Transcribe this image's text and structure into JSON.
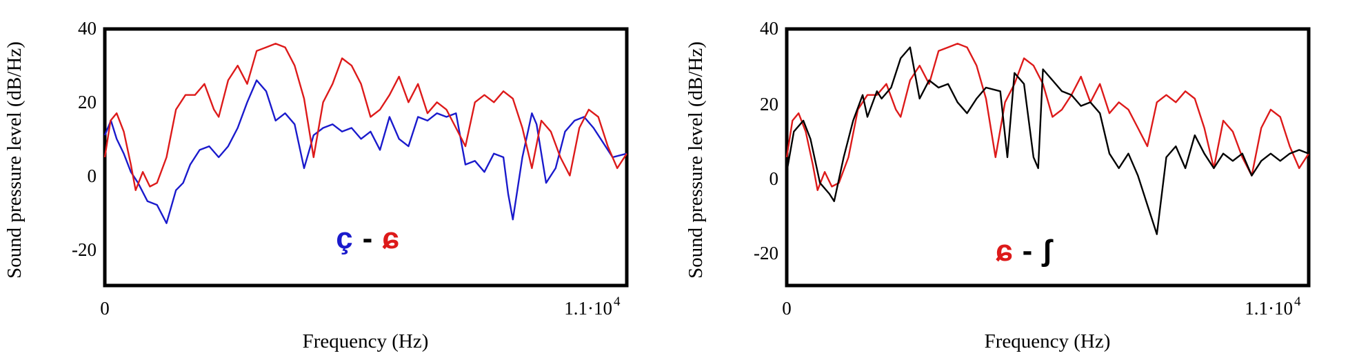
{
  "chart_data": [
    {
      "type": "line",
      "xlabel": "Frequency (Hz)",
      "ylabel": "Sound pressure level (dB/Hz)",
      "xlim": [
        0,
        11000
      ],
      "ylim": [
        -30,
        40
      ],
      "x_tick_labels": [
        "0",
        "1.1·10"
      ],
      "x_tick_exponent": "4",
      "yticks": [
        40,
        20,
        0,
        -20
      ],
      "y_tick_labels": [
        "40",
        "20",
        "0",
        "-20"
      ],
      "legend": {
        "parts": [
          "ç",
          "-",
          "ɕ"
        ],
        "colors": [
          "#1a1acc",
          "#000000",
          "#dd1a1a"
        ],
        "position": "bottom-center"
      },
      "series": [
        {
          "color": "#1a1acc",
          "x": [
            0,
            130,
            250,
            400,
            550,
            700,
            900,
            1100,
            1300,
            1500,
            1650,
            1800,
            2000,
            2200,
            2400,
            2600,
            2800,
            3000,
            3200,
            3400,
            3600,
            3800,
            4000,
            4200,
            4400,
            4600,
            4800,
            5000,
            5200,
            5400,
            5600,
            5800,
            6000,
            6200,
            6400,
            6600,
            6800,
            7000,
            7200,
            7400,
            7600,
            7800,
            8000,
            8200,
            8400,
            8500,
            8600,
            8800,
            9000,
            9100,
            9300,
            9500,
            9700,
            9900,
            10100,
            10300,
            10500,
            10700,
            11000
          ],
          "y": [
            11,
            15,
            10,
            6,
            1,
            -2,
            -7,
            -8,
            -13,
            -4,
            -2,
            3,
            7,
            8,
            5,
            8,
            13,
            20,
            26,
            23,
            15,
            17,
            14,
            2,
            11,
            13,
            14,
            12,
            13,
            10,
            12,
            7,
            16,
            10,
            8,
            16,
            15,
            17,
            16,
            17,
            3,
            4,
            1,
            6,
            5,
            -5,
            -12,
            5,
            17,
            14,
            -2,
            2,
            12,
            15,
            16,
            13,
            9,
            5,
            6
          ]
        },
        {
          "color": "#dd1a1a",
          "x": [
            0,
            120,
            250,
            400,
            550,
            650,
            800,
            950,
            1100,
            1300,
            1500,
            1700,
            1900,
            2100,
            2300,
            2400,
            2600,
            2800,
            3000,
            3200,
            3400,
            3600,
            3800,
            4000,
            4200,
            4400,
            4600,
            4800,
            5000,
            5200,
            5400,
            5600,
            5800,
            6000,
            6200,
            6400,
            6600,
            6800,
            7000,
            7200,
            7400,
            7600,
            7800,
            8000,
            8200,
            8400,
            8600,
            8800,
            9000,
            9200,
            9400,
            9600,
            9800,
            10000,
            10200,
            10400,
            10600,
            10800,
            11000
          ],
          "y": [
            5,
            15,
            17,
            12,
            3,
            -4,
            1,
            -3,
            -2,
            5,
            18,
            22,
            22,
            25,
            18,
            16,
            26,
            30,
            25,
            34,
            35,
            36,
            35,
            30,
            21,
            5,
            20,
            25,
            32,
            30,
            25,
            16,
            18,
            22,
            27,
            20,
            25,
            17,
            20,
            18,
            13,
            8,
            20,
            22,
            20,
            23,
            21,
            13,
            2,
            15,
            12,
            5,
            0,
            13,
            18,
            16,
            8,
            2,
            6
          ]
        }
      ]
    },
    {
      "type": "line",
      "xlabel": "Frequency (Hz)",
      "ylabel": "Sound pressure level (dB/Hz)",
      "xlim": [
        0,
        11000
      ],
      "ylim": [
        -30,
        40
      ],
      "x_tick_labels": [
        "0",
        "1.1·10"
      ],
      "x_tick_exponent": "4",
      "yticks": [
        40,
        20,
        0,
        -20
      ],
      "y_tick_labels": [
        "40",
        "20",
        "0",
        "-20"
      ],
      "legend": {
        "parts": [
          "ɕ",
          "-",
          "ʃ"
        ],
        "colors": [
          "#dd1a1a",
          "#000000",
          "#000000"
        ],
        "position": "bottom-center"
      },
      "series": [
        {
          "color": "#dd1a1a",
          "x": [
            0,
            120,
            250,
            400,
            550,
            650,
            800,
            950,
            1100,
            1300,
            1500,
            1700,
            1900,
            2100,
            2300,
            2400,
            2600,
            2800,
            3000,
            3200,
            3400,
            3600,
            3800,
            4000,
            4200,
            4400,
            4600,
            4800,
            5000,
            5200,
            5400,
            5600,
            5800,
            6000,
            6200,
            6400,
            6600,
            6800,
            7000,
            7200,
            7400,
            7600,
            7800,
            8000,
            8200,
            8400,
            8600,
            8800,
            9000,
            9200,
            9400,
            9600,
            9800,
            10000,
            10200,
            10400,
            10600,
            10800,
            11000
          ],
          "y": [
            5,
            15,
            17,
            12,
            3,
            -4,
            1,
            -3,
            -2,
            5,
            18,
            22,
            22,
            25,
            18,
            16,
            26,
            30,
            25,
            34,
            35,
            36,
            35,
            30,
            21,
            5,
            20,
            25,
            32,
            30,
            25,
            16,
            18,
            22,
            27,
            20,
            25,
            17,
            20,
            18,
            13,
            8,
            20,
            22,
            20,
            23,
            21,
            13,
            2,
            15,
            12,
            5,
            0,
            13,
            18,
            16,
            8,
            2,
            6
          ]
        },
        {
          "color": "#000000",
          "x": [
            0,
            150,
            350,
            500,
            700,
            900,
            1000,
            1200,
            1400,
            1600,
            1700,
            1900,
            2000,
            2200,
            2400,
            2600,
            2800,
            3000,
            3200,
            3400,
            3600,
            3800,
            4000,
            4200,
            4500,
            4650,
            4800,
            5000,
            5200,
            5300,
            5400,
            5600,
            5800,
            6000,
            6200,
            6400,
            6600,
            6800,
            7000,
            7200,
            7400,
            7600,
            7800,
            8000,
            8200,
            8400,
            8600,
            8800,
            9000,
            9200,
            9400,
            9600,
            9800,
            10000,
            10200,
            10400,
            10600,
            10800,
            11000
          ],
          "y": [
            1,
            12,
            15,
            10,
            -2,
            -5,
            -7,
            5,
            15,
            22,
            16,
            23,
            21,
            24,
            32,
            35,
            21,
            26,
            24,
            25,
            20,
            17,
            21,
            24,
            23,
            5,
            28,
            25,
            5,
            2,
            29,
            26,
            23,
            22,
            19,
            20,
            17,
            6,
            2,
            6,
            0,
            -8,
            -16,
            5,
            8,
            2,
            11,
            6,
            2,
            6,
            4,
            6,
            0,
            4,
            6,
            4,
            6,
            7,
            6
          ]
        }
      ]
    }
  ]
}
